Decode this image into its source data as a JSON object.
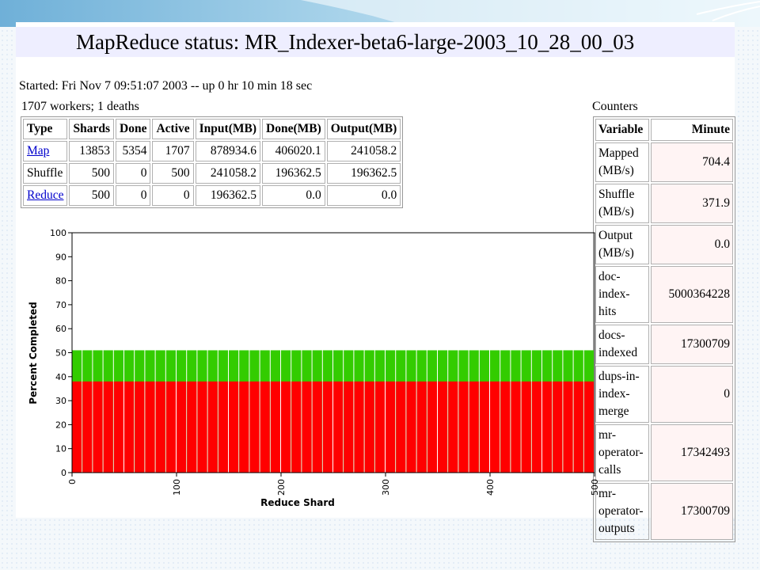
{
  "title": "MapReduce status: MR_Indexer-beta6-large-2003_10_28_00_03",
  "started": "Started: Fri Nov 7 09:51:07 2003 -- up 0 hr 10 min 18 sec",
  "workers_line": "1707 workers; 1 deaths",
  "jobs_table": {
    "headers": [
      "Type",
      "Shards",
      "Done",
      "Active",
      "Input(MB)",
      "Done(MB)",
      "Output(MB)"
    ],
    "rows": [
      {
        "type": "Map",
        "link": true,
        "shards": "13853",
        "done": "5354",
        "active": "1707",
        "input": "878934.6",
        "done_mb": "406020.1",
        "output": "241058.2"
      },
      {
        "type": "Shuffle",
        "link": false,
        "shards": "500",
        "done": "0",
        "active": "500",
        "input": "241058.2",
        "done_mb": "196362.5",
        "output": "196362.5"
      },
      {
        "type": "Reduce",
        "link": true,
        "shards": "500",
        "done": "0",
        "active": "0",
        "input": "196362.5",
        "done_mb": "0.0",
        "output": "0.0"
      }
    ]
  },
  "counters": {
    "caption": "Counters",
    "headers": [
      "Variable",
      "Minute"
    ],
    "rows": [
      {
        "var": "Mapped (MB/s)",
        "val": "704.4"
      },
      {
        "var": "Shuffle (MB/s)",
        "val": "371.9"
      },
      {
        "var": "Output (MB/s)",
        "val": "0.0"
      },
      {
        "var": "doc-index-hits",
        "val": "5000364228"
      },
      {
        "var": "docs-indexed",
        "val": "17300709"
      },
      {
        "var": "dups-in-index-merge",
        "val": "0"
      },
      {
        "var": "mr-operator-calls",
        "val": "17342493"
      },
      {
        "var": "mr-operator-outputs",
        "val": "17300709"
      }
    ]
  },
  "chart_data": {
    "type": "bar",
    "title": "",
    "xlabel": "Reduce Shard",
    "ylabel": "Percent Completed",
    "xlim": [
      0,
      500
    ],
    "ylim": [
      0,
      100
    ],
    "x_ticks": [
      "0",
      "100",
      "200",
      "300",
      "400",
      "500"
    ],
    "y_ticks": [
      "0",
      "10",
      "20",
      "30",
      "40",
      "50",
      "60",
      "70",
      "80",
      "90",
      "100"
    ],
    "bar_groups": 50,
    "series": [
      {
        "color": "#ff0000",
        "value": 38
      },
      {
        "color": "#33cc00",
        "value": 51
      }
    ]
  }
}
